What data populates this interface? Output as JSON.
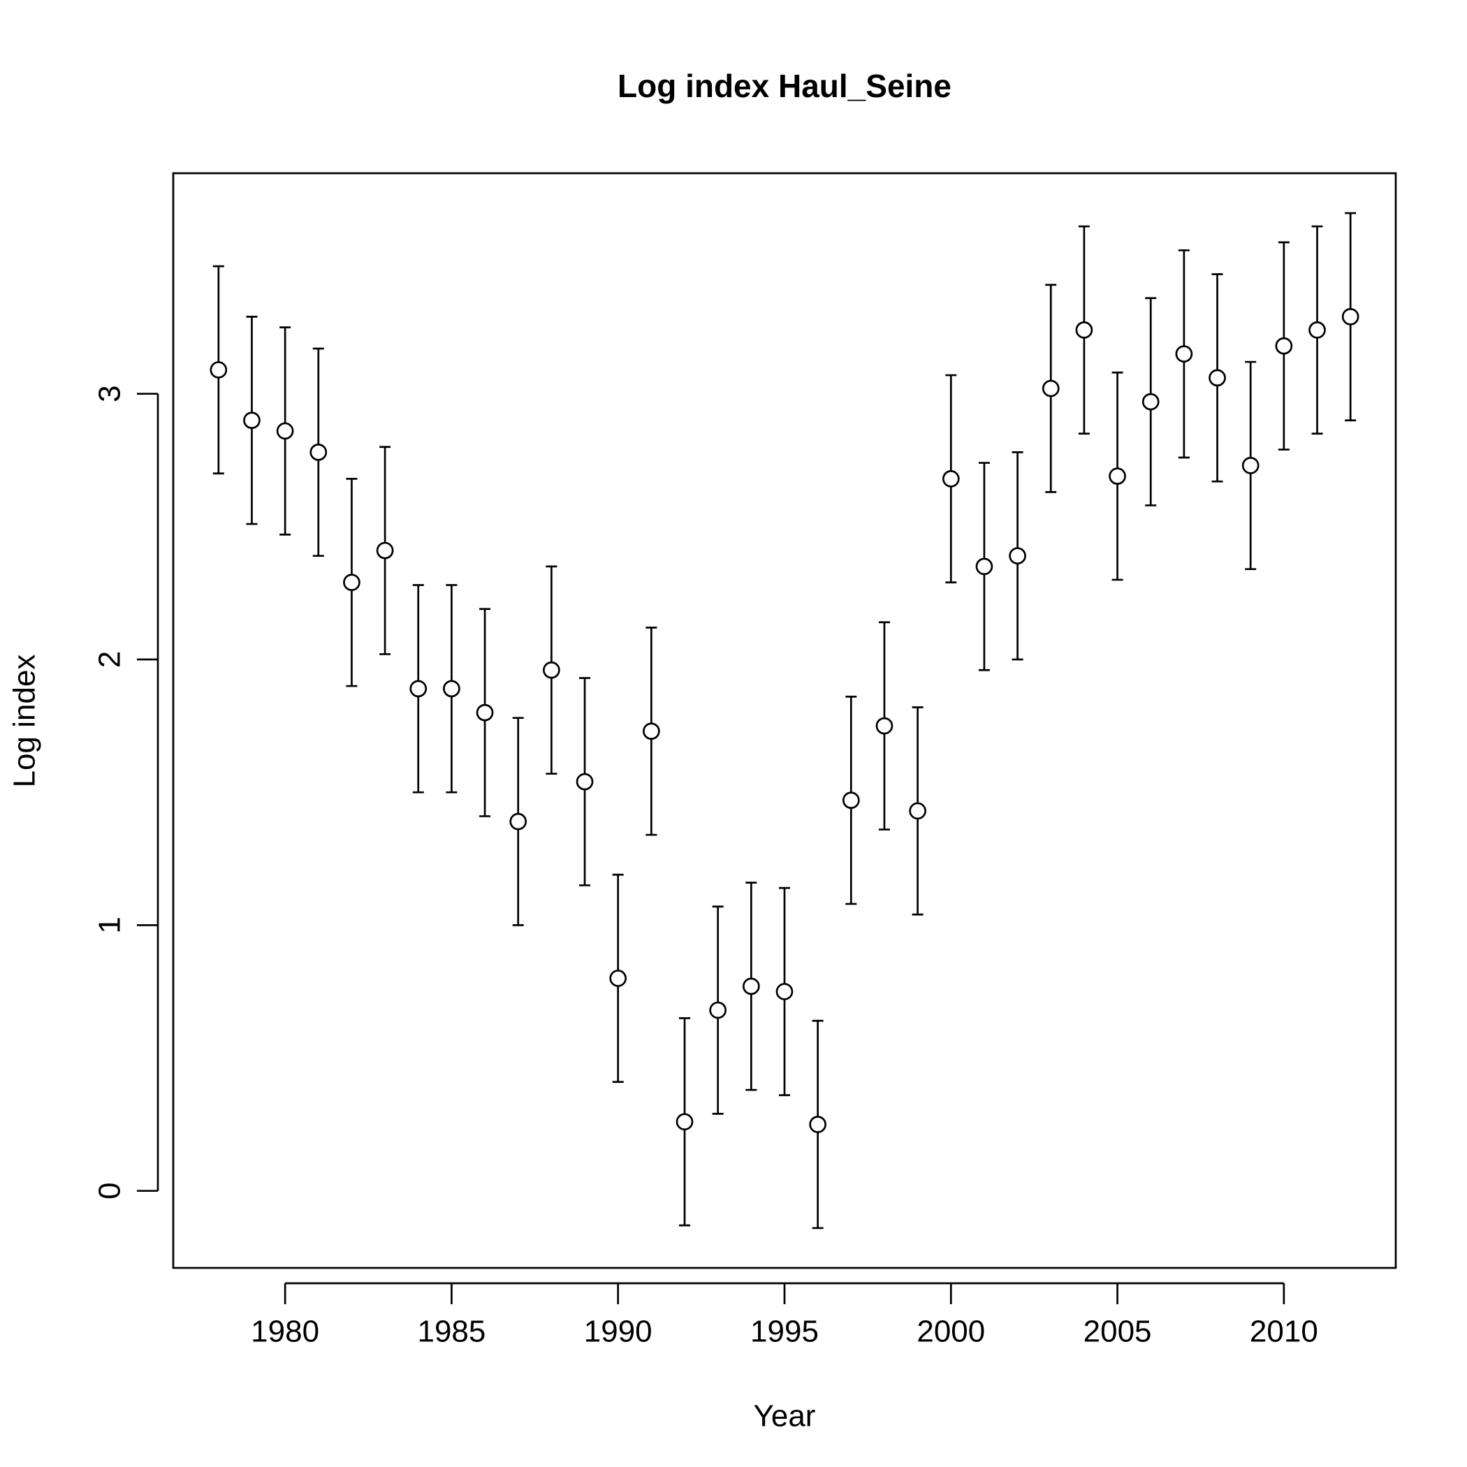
{
  "chart_data": {
    "type": "errorbar",
    "title": "Log index Haul_Seine",
    "x_label": "Year",
    "y_label": "Log index",
    "x": [
      1978,
      1979,
      1980,
      1981,
      1982,
      1983,
      1984,
      1985,
      1986,
      1987,
      1988,
      1989,
      1990,
      1991,
      1992,
      1993,
      1994,
      1995,
      1996,
      1997,
      1998,
      1999,
      2000,
      2001,
      2002,
      2003,
      2004,
      2005,
      2006,
      2007,
      2008,
      2009,
      2010,
      2011,
      2012
    ],
    "values": [
      3.09,
      2.9,
      2.86,
      2.78,
      2.29,
      2.41,
      1.89,
      1.89,
      1.8,
      1.39,
      1.96,
      1.54,
      0.8,
      1.73,
      0.26,
      0.68,
      0.77,
      0.75,
      0.25,
      1.47,
      1.75,
      1.43,
      2.68,
      2.35,
      2.39,
      3.02,
      3.24,
      2.69,
      2.97,
      3.15,
      3.06,
      2.73,
      3.18,
      3.24,
      3.29
    ],
    "errors": [
      0.39,
      0.39,
      0.39,
      0.39,
      0.39,
      0.39,
      0.39,
      0.39,
      0.39,
      0.39,
      0.39,
      0.39,
      0.39,
      0.39,
      0.39,
      0.39,
      0.39,
      0.39,
      0.39,
      0.39,
      0.39,
      0.39,
      0.39,
      0.39,
      0.39,
      0.39,
      0.39,
      0.39,
      0.39,
      0.39,
      0.39,
      0.39,
      0.39,
      0.39,
      0.39
    ],
    "xlim": [
      1976.64,
      2013.36
    ],
    "ylim": [
      -0.29,
      3.83
    ],
    "xticks": [
      1980,
      1985,
      1990,
      1995,
      2000,
      2005,
      2010
    ],
    "yticks": [
      0,
      1,
      2,
      3
    ]
  }
}
